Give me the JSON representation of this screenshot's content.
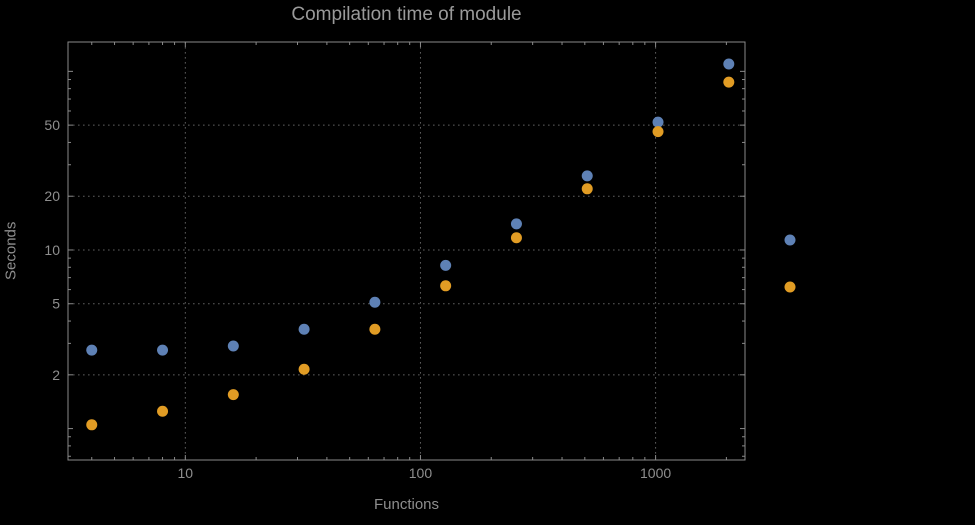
{
  "window": {
    "background": "#000000"
  },
  "colors": {
    "background": "#000000",
    "title_text": "#9a9a9a",
    "axis_text": "#8e8e8e",
    "frame": "#8a8a8a",
    "grid": "#5f5f5f",
    "series_blue": "#5e81b5",
    "series_orange": "#e19c24"
  },
  "chart_data": {
    "type": "scatter",
    "title": "Compilation time of module",
    "xlabel": "Functions",
    "ylabel": "Seconds",
    "xscale": "log",
    "yscale": "log",
    "xlim": [
      3.17,
      2400
    ],
    "ylim": [
      0.667,
      146
    ],
    "x_ticks": [
      10,
      100,
      1000
    ],
    "y_ticks": [
      2,
      5,
      10,
      20,
      50
    ],
    "y_unlabeled_major_ticks": [
      1,
      100
    ],
    "grid": "dotted",
    "legend_position": "right",
    "x": [
      4,
      8,
      16,
      32,
      64,
      128,
      256,
      512,
      1024,
      2048
    ],
    "series": [
      {
        "name": "blue",
        "color": "#5e81b5",
        "values": [
          2.75,
          2.75,
          2.9,
          3.6,
          5.1,
          8.2,
          14,
          26,
          52,
          110
        ]
      },
      {
        "name": "orange",
        "color": "#e19c24",
        "values": [
          1.05,
          1.25,
          1.55,
          2.15,
          3.6,
          6.3,
          11.7,
          22,
          46,
          87
        ]
      }
    ],
    "legend": {
      "entries": [
        {
          "name": "blue",
          "color": "#5e81b5"
        },
        {
          "name": "orange",
          "color": "#e19c24"
        }
      ]
    }
  }
}
